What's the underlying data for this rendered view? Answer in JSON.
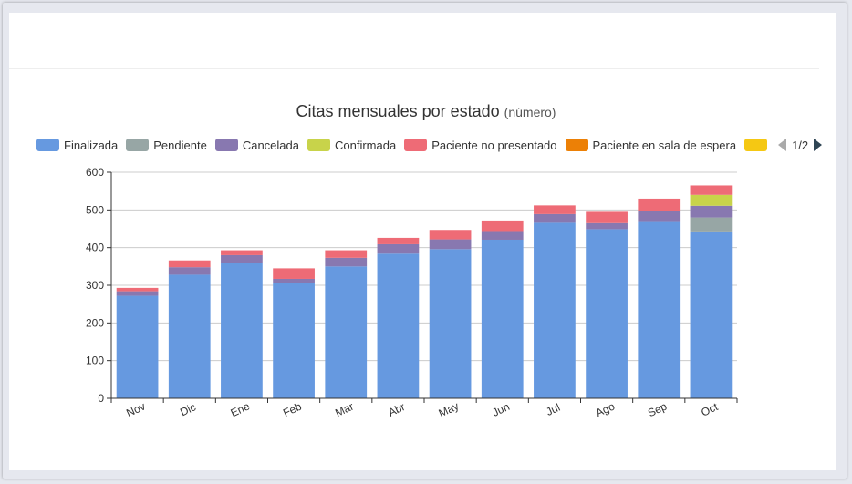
{
  "chart_data": {
    "type": "bar",
    "stacked": true,
    "title": "Citas mensuales por estado",
    "subtitle": "(número)",
    "categories": [
      "Nov",
      "Dic",
      "Ene",
      "Feb",
      "Mar",
      "Abr",
      "May",
      "Jun",
      "Jul",
      "Ago",
      "Sep",
      "Oct"
    ],
    "series": [
      {
        "name": "Finalizada",
        "color": "#6699e0",
        "values": [
          272,
          328,
          360,
          305,
          350,
          384,
          396,
          421,
          466,
          449,
          468,
          443
        ]
      },
      {
        "name": "Pendiente",
        "color": "#97a6a5",
        "values": [
          0,
          0,
          0,
          0,
          0,
          0,
          0,
          0,
          0,
          0,
          0,
          37
        ]
      },
      {
        "name": "Cancelada",
        "color": "#8878b0",
        "values": [
          12,
          20,
          20,
          12,
          23,
          25,
          26,
          23,
          23,
          16,
          30,
          31
        ]
      },
      {
        "name": "Confirmada",
        "color": "#c8d34a",
        "values": [
          0,
          0,
          0,
          0,
          0,
          0,
          0,
          0,
          0,
          0,
          0,
          29
        ]
      },
      {
        "name": "Paciente no presentado",
        "color": "#ee6b76",
        "values": [
          9,
          18,
          13,
          28,
          20,
          17,
          25,
          28,
          23,
          30,
          32,
          25
        ]
      },
      {
        "name": "Paciente en sala de espera",
        "color": "#ec8006",
        "values": [
          0,
          0,
          0,
          0,
          0,
          0,
          0,
          0,
          0,
          0,
          0,
          0
        ]
      },
      {
        "name": "",
        "color": "#f5c813",
        "values": [
          0,
          0,
          0,
          0,
          0,
          0,
          0,
          0,
          0,
          0,
          0,
          0
        ]
      }
    ],
    "y_ticks": [
      "0",
      "100",
      "200",
      "300",
      "400",
      "500",
      "600"
    ],
    "ylim": [
      0,
      600
    ],
    "grid": true,
    "legend_position": "top"
  },
  "legend": {
    "items": [
      "Finalizada",
      "Pendiente",
      "Cancelada",
      "Confirmada",
      "Paciente no presentado",
      "Paciente en sala de espera"
    ],
    "page_indicator": "1/2"
  }
}
